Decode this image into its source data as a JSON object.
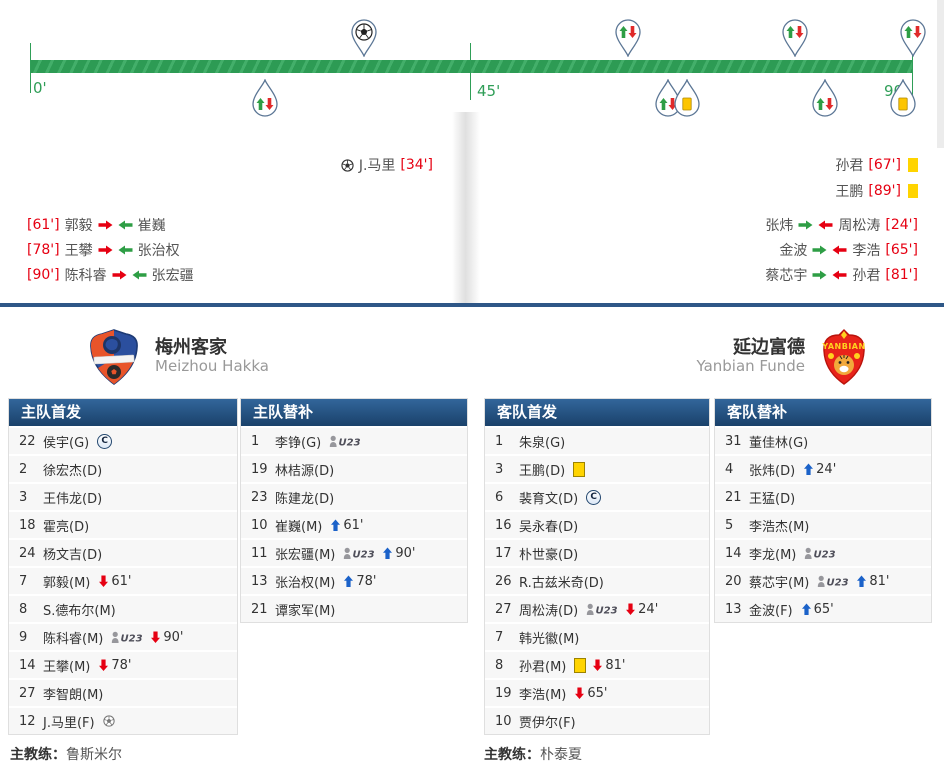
{
  "timeline": {
    "start_label": "0'",
    "half_label": "45'",
    "end_label": "90'",
    "top_pins": [
      {
        "type": "goal",
        "minute": 34
      },
      {
        "type": "sub",
        "minute": 61
      },
      {
        "type": "sub",
        "minute": 78
      },
      {
        "type": "sub",
        "minute": 90
      }
    ],
    "bottom_pins": [
      {
        "type": "sub",
        "minute": 24
      },
      {
        "type": "sub",
        "minute": 65
      },
      {
        "type": "yellow",
        "minute": 67
      },
      {
        "type": "sub",
        "minute": 81
      },
      {
        "type": "yellow",
        "minute": 89
      }
    ]
  },
  "events": {
    "home": {
      "goal": {
        "player": "J.马里",
        "time": "[34']"
      },
      "subs": [
        {
          "time": "[61']",
          "out": "郭毅",
          "in": "崔巍"
        },
        {
          "time": "[78']",
          "out": "王攀",
          "in": "张治权"
        },
        {
          "time": "[90']",
          "out": "陈科睿",
          "in": "张宏疆"
        }
      ]
    },
    "away": {
      "cards": [
        {
          "player": "孙君",
          "time": "[67']"
        },
        {
          "player": "王鹏",
          "time": "[89']"
        }
      ],
      "subs": [
        {
          "in": "张炜",
          "out": "周松涛",
          "time": "[24']"
        },
        {
          "in": "金波",
          "out": "李浩",
          "time": "[65']"
        },
        {
          "in": "蔡芯宇",
          "out": "孙君",
          "time": "[81']"
        }
      ]
    }
  },
  "teams": {
    "home": {
      "name": "梅州客家",
      "name_en": "Meizhou Hakka"
    },
    "away": {
      "name": "延边富德",
      "name_en": "Yanbian Funde"
    }
  },
  "lineups": {
    "home_start": {
      "title": "主队首发",
      "players": [
        {
          "num": "22",
          "name": "侯宇(G)",
          "captain": true
        },
        {
          "num": "2",
          "name": "徐宏杰(D)"
        },
        {
          "num": "3",
          "name": "王伟龙(D)"
        },
        {
          "num": "18",
          "name": "霍亮(D)"
        },
        {
          "num": "24",
          "name": "杨文吉(D)"
        },
        {
          "num": "7",
          "name": "郭毅(M)",
          "down": "61'"
        },
        {
          "num": "8",
          "name": "S.德布尔(M)"
        },
        {
          "num": "9",
          "name": "陈科睿(M)",
          "u23": true,
          "down": "90'"
        },
        {
          "num": "14",
          "name": "王攀(M)",
          "down": "78'"
        },
        {
          "num": "27",
          "name": "李智朗(M)"
        },
        {
          "num": "12",
          "name": "J.马里(F)",
          "goal": true
        }
      ]
    },
    "home_sub": {
      "title": "主队替补",
      "players": [
        {
          "num": "1",
          "name": "李铮(G)",
          "u23": true
        },
        {
          "num": "19",
          "name": "林桔源(D)"
        },
        {
          "num": "23",
          "name": "陈建龙(D)"
        },
        {
          "num": "10",
          "name": "崔巍(M)",
          "up": "61'"
        },
        {
          "num": "11",
          "name": "张宏疆(M)",
          "u23": true,
          "up": "90'"
        },
        {
          "num": "13",
          "name": "张治权(M)",
          "up": "78'"
        },
        {
          "num": "21",
          "name": "谭家军(M)"
        }
      ]
    },
    "away_start": {
      "title": "客队首发",
      "players": [
        {
          "num": "1",
          "name": "朱泉(G)"
        },
        {
          "num": "3",
          "name": "王鹏(D)",
          "yellow": true
        },
        {
          "num": "6",
          "name": "裴育文(D)",
          "captain": true
        },
        {
          "num": "16",
          "name": "吴永春(D)"
        },
        {
          "num": "17",
          "name": "朴世豪(D)"
        },
        {
          "num": "26",
          "name": "R.古兹米奇(D)"
        },
        {
          "num": "27",
          "name": "周松涛(D)",
          "u23": true,
          "down": "24'"
        },
        {
          "num": "7",
          "name": "韩光徽(M)"
        },
        {
          "num": "8",
          "name": "孙君(M)",
          "yellow": true,
          "down": "81'"
        },
        {
          "num": "19",
          "name": "李浩(M)",
          "down": "65'"
        },
        {
          "num": "10",
          "name": "贾伊尔(F)"
        }
      ]
    },
    "away_sub": {
      "title": "客队替补",
      "players": [
        {
          "num": "31",
          "name": "董佳林(G)"
        },
        {
          "num": "4",
          "name": "张炜(D)",
          "up": "24'"
        },
        {
          "num": "21",
          "name": "王猛(D)"
        },
        {
          "num": "5",
          "name": "李浩杰(M)"
        },
        {
          "num": "14",
          "name": "李龙(M)",
          "u23": true
        },
        {
          "num": "20",
          "name": "蔡芯宇(M)",
          "u23": true,
          "up": "81'"
        },
        {
          "num": "13",
          "name": "金波(F)",
          "up": "65'"
        }
      ]
    }
  },
  "coaches": {
    "label": "主教练：",
    "home": "鲁斯米尔",
    "away": "朴泰夏"
  },
  "colors": {
    "pitch_green": "#2f9e57",
    "header_blue": "#1a416a",
    "rule_blue": "#2e5787",
    "event_red": "#e60012",
    "sub_in_blue": "#1b62c9",
    "sub_green": "#2e9e45",
    "yellow_card": "#ffd400"
  }
}
